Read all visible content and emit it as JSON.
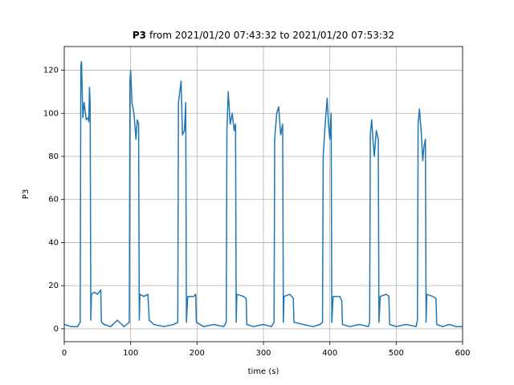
{
  "chart_data": {
    "type": "line",
    "title_bold": "P3",
    "title": "from 2021/01/20 07:43:32 to 2021/01/20 07:53:32",
    "xlabel": "time (s)",
    "ylabel": "P3",
    "x": [
      0,
      10,
      20,
      24,
      25,
      26,
      28,
      30,
      33,
      36,
      37,
      38,
      39,
      40,
      41,
      45,
      50,
      55,
      56,
      60,
      70,
      80,
      90,
      98,
      99,
      100,
      102,
      105,
      108,
      110,
      112,
      113,
      114,
      120,
      126,
      128,
      135,
      150,
      165,
      171,
      172,
      174,
      176,
      178,
      181,
      183,
      184,
      186,
      195,
      198,
      199,
      210,
      225,
      240,
      244,
      245,
      247,
      250,
      253,
      256,
      258,
      259,
      260,
      270,
      274,
      275,
      285,
      300,
      312,
      316,
      317,
      320,
      323,
      326,
      329,
      330,
      331,
      340,
      345,
      346,
      360,
      375,
      385,
      389,
      390,
      393,
      396,
      398,
      400,
      402,
      403,
      405,
      415,
      418,
      419,
      430,
      445,
      458,
      460,
      461,
      463,
      465,
      467,
      470,
      473,
      474,
      476,
      485,
      489,
      490,
      500,
      515,
      530,
      532,
      533,
      535,
      538,
      540,
      542,
      544,
      545,
      546,
      555,
      560,
      561,
      570,
      580,
      590,
      600
    ],
    "values": [
      2,
      1,
      1,
      3,
      122,
      124,
      98,
      105,
      97,
      98,
      96,
      112,
      105,
      4,
      16,
      17,
      16,
      18,
      3,
      2,
      1,
      4,
      1,
      3,
      115,
      120,
      105,
      100,
      88,
      97,
      95,
      4,
      16,
      15,
      16,
      4,
      2,
      1,
      2,
      3,
      105,
      110,
      115,
      90,
      92,
      105,
      3,
      15,
      15,
      16,
      3,
      1,
      2,
      1,
      3,
      92,
      110,
      95,
      100,
      92,
      95,
      3,
      16,
      15,
      14,
      2,
      1,
      2,
      1,
      3,
      88,
      100,
      103,
      90,
      95,
      3,
      15,
      16,
      14,
      3,
      2,
      1,
      2,
      3,
      80,
      95,
      107,
      95,
      88,
      100,
      3,
      15,
      15,
      13,
      2,
      1,
      2,
      1,
      3,
      90,
      97,
      88,
      80,
      92,
      88,
      3,
      15,
      16,
      15,
      2,
      1,
      2,
      1,
      4,
      95,
      102,
      90,
      78,
      85,
      88,
      3,
      16,
      15,
      14,
      2,
      1,
      2,
      1,
      1
    ],
    "color": "#1f77b4",
    "xlim": [
      0,
      600
    ],
    "ylim": [
      -6,
      131
    ],
    "xticks": [
      0,
      100,
      200,
      300,
      400,
      500,
      600
    ],
    "yticks": [
      0,
      20,
      40,
      60,
      80,
      100,
      120
    ],
    "grid": true
  }
}
